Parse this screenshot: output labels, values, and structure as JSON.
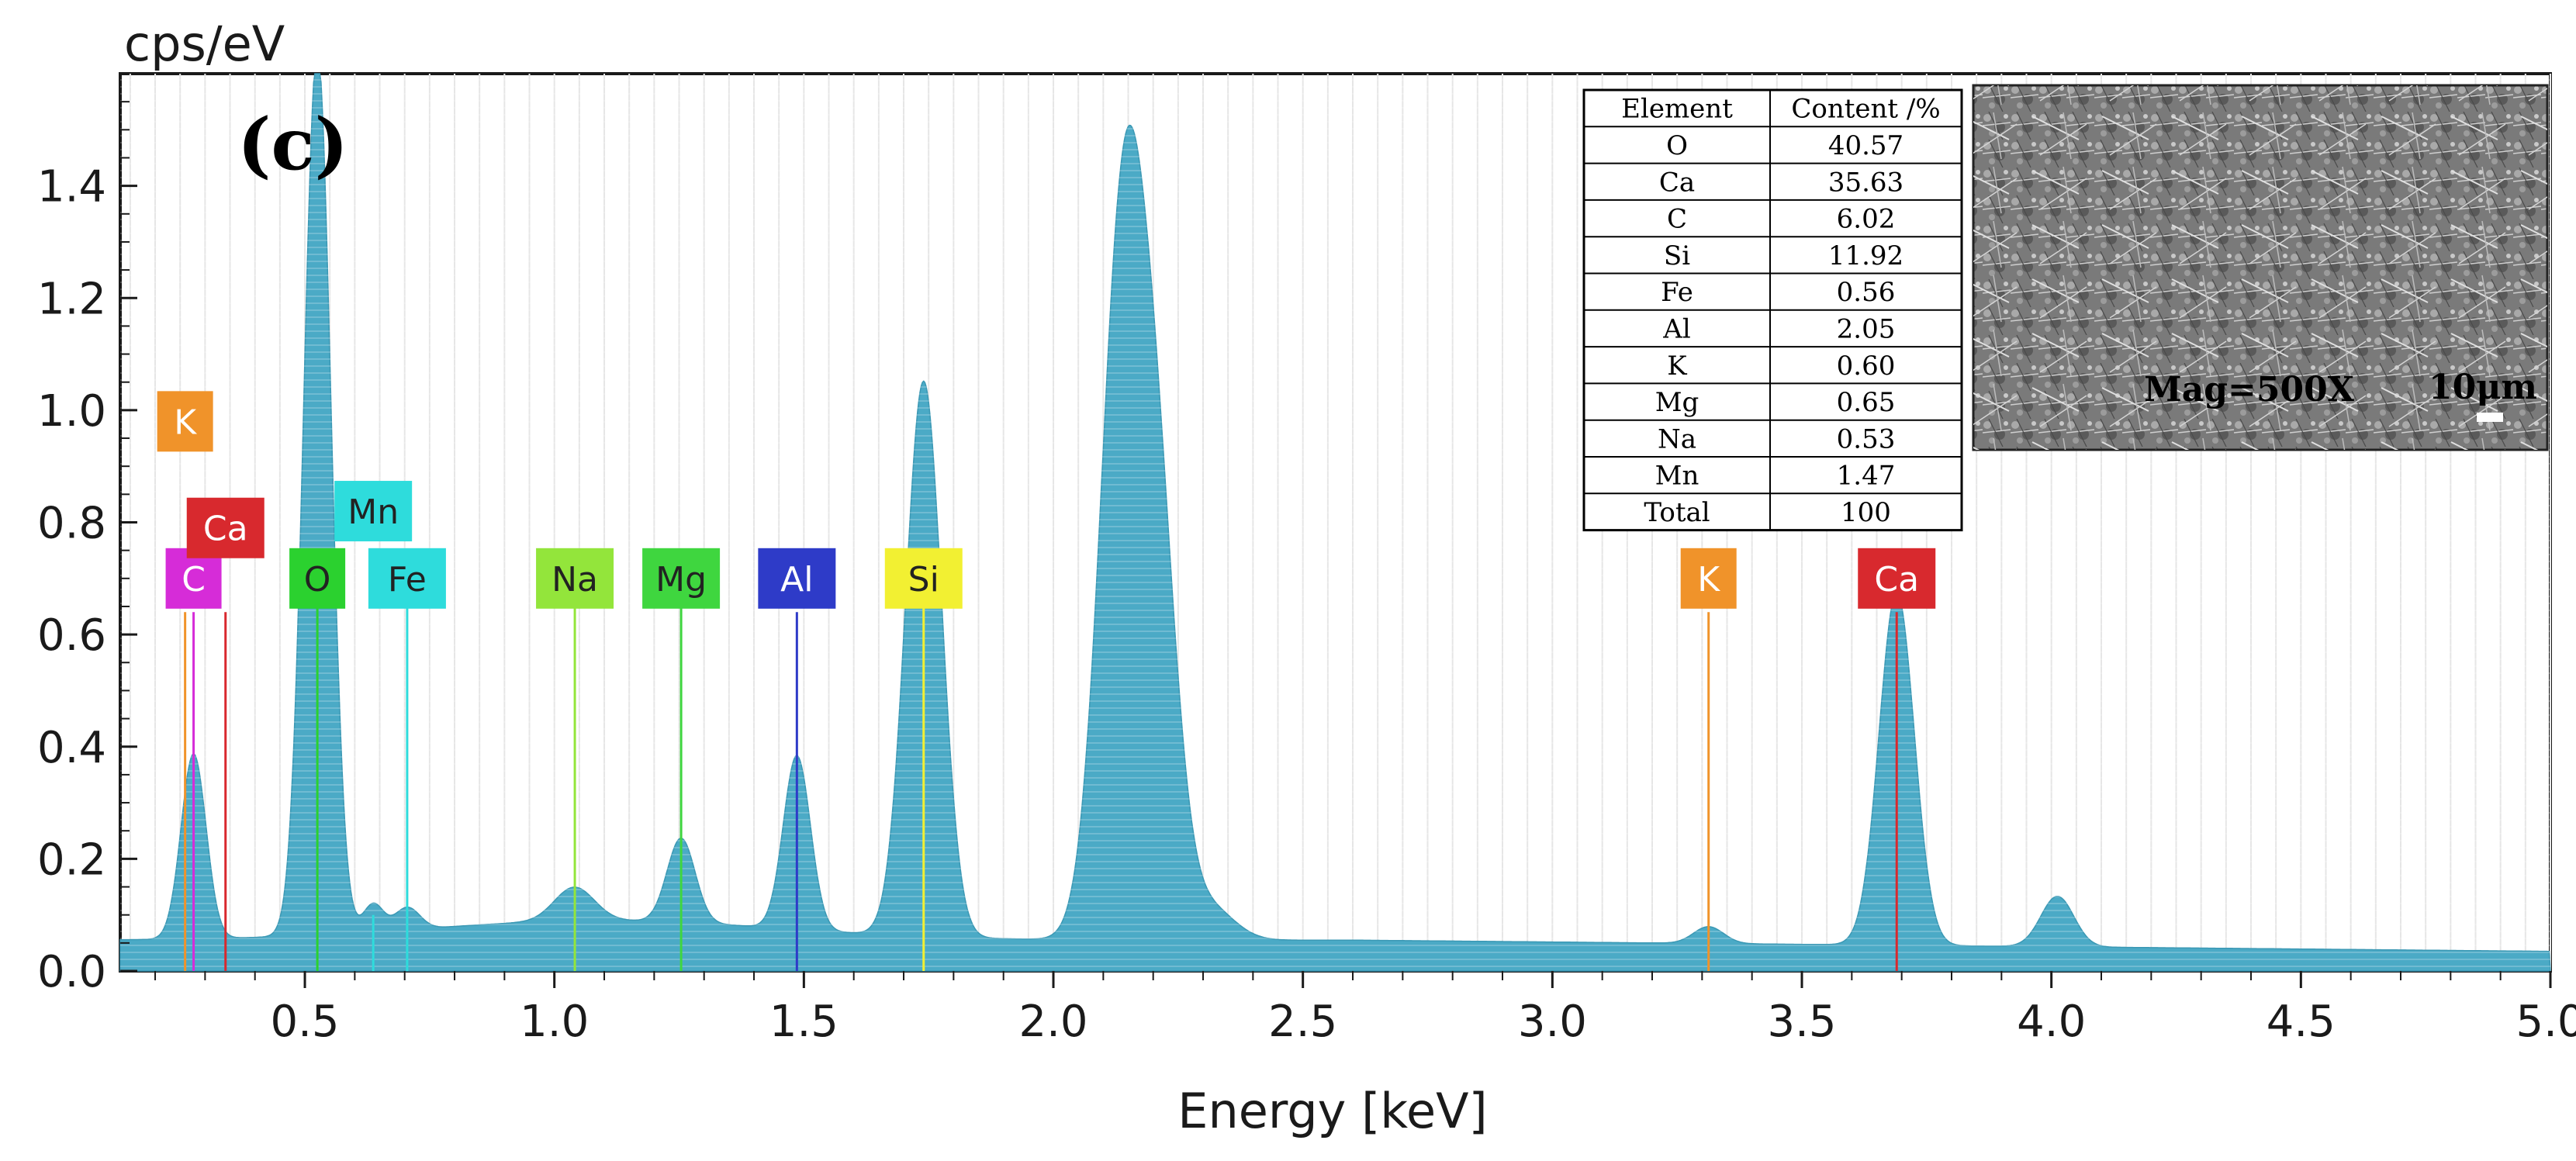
{
  "chart_data": {
    "type": "area",
    "title": "",
    "panel_label": "(c)",
    "xlabel": "Energy [keV]",
    "ylabel": "cps/eV",
    "xlim": [
      0.13,
      5.0
    ],
    "ylim": [
      0.0,
      1.6
    ],
    "x_ticks": [
      0.5,
      1.0,
      1.5,
      2.0,
      2.5,
      3.0,
      3.5,
      4.0,
      4.5,
      5.0
    ],
    "x_tick_labels": [
      "0.5",
      "1.0",
      "1.5",
      "2.0",
      "2.5",
      "3.0",
      "3.5",
      "4.0",
      "4.5",
      "5.0"
    ],
    "y_ticks": [
      0.0,
      0.2,
      0.4,
      0.6,
      0.8,
      1.0,
      1.2,
      1.4
    ],
    "y_tick_labels": [
      "0.0",
      "0.2",
      "0.4",
      "0.6",
      "0.8",
      "1.0",
      "1.2",
      "1.4"
    ],
    "fill_color": "#4BAAC6",
    "background_level": 0.055,
    "peaks": [
      {
        "center": 0.277,
        "height": 0.33,
        "width": 0.025
      },
      {
        "center": 0.525,
        "height": 1.58,
        "width": 0.027
      },
      {
        "center": 0.637,
        "height": 0.05,
        "width": 0.02
      },
      {
        "center": 0.705,
        "height": 0.04,
        "width": 0.025
      },
      {
        "center": 1.04,
        "height": 0.06,
        "width": 0.04
      },
      {
        "center": 1.254,
        "height": 0.15,
        "width": 0.028
      },
      {
        "center": 1.486,
        "height": 0.31,
        "width": 0.027
      },
      {
        "center": 1.74,
        "height": 0.99,
        "width": 0.036
      },
      {
        "center": 2.14,
        "height": 1.28,
        "width": 0.045
      },
      {
        "center": 2.21,
        "height": 0.62,
        "width": 0.04
      },
      {
        "center": 2.31,
        "height": 0.06,
        "width": 0.05
      },
      {
        "center": 3.313,
        "height": 0.03,
        "width": 0.03
      },
      {
        "center": 3.69,
        "height": 0.63,
        "width": 0.035
      },
      {
        "center": 4.012,
        "height": 0.09,
        "width": 0.033
      }
    ],
    "element_markers": [
      {
        "symbol": "C",
        "energy": 0.277,
        "color": "#D62CD8",
        "line_height": 0.64,
        "label_y": 0.7
      },
      {
        "symbol": "Ca",
        "energy": 0.341,
        "color": "#D8292E",
        "line_height": 0.64,
        "label_y": 0.79
      },
      {
        "symbol": "K",
        "energy": 0.26,
        "color": "#F0932A",
        "line_height": 0.64,
        "label_y": 0.98
      },
      {
        "symbol": "O",
        "energy": 0.525,
        "color": "#2BD12F",
        "line_height": 0.7,
        "label_y": 0.7
      },
      {
        "symbol": "Mn",
        "energy": 0.637,
        "color": "#2EDCDC",
        "line_height": 0.1,
        "label_y": 0.82
      },
      {
        "symbol": "Fe",
        "energy": 0.705,
        "color": "#2EDCDC",
        "line_height": 0.7,
        "label_y": 0.7
      },
      {
        "symbol": "Na",
        "energy": 1.041,
        "color": "#93E53B",
        "line_height": 0.7,
        "label_y": 0.7
      },
      {
        "symbol": "Mg",
        "energy": 1.254,
        "color": "#3FD63F",
        "line_height": 0.7,
        "label_y": 0.7
      },
      {
        "symbol": "Al",
        "energy": 1.486,
        "color": "#2E3BC8",
        "line_height": 0.64,
        "label_y": 0.7
      },
      {
        "symbol": "Si",
        "energy": 1.74,
        "color": "#F2F032",
        "line_height": 0.7,
        "label_y": 0.7
      },
      {
        "symbol": "K",
        "energy": 3.313,
        "color": "#F0932A",
        "line_height": 0.64,
        "label_y": 0.7
      },
      {
        "symbol": "Ca",
        "energy": 3.69,
        "color": "#D8292E",
        "line_height": 0.64,
        "label_y": 0.7
      }
    ],
    "composition_table": {
      "headers": [
        "Element",
        "Content /%"
      ],
      "rows": [
        [
          "O",
          "40.57"
        ],
        [
          "Ca",
          "35.63"
        ],
        [
          "C",
          "6.02"
        ],
        [
          "Si",
          "11.92"
        ],
        [
          "Fe",
          "0.56"
        ],
        [
          "Al",
          "2.05"
        ],
        [
          "K",
          "0.60"
        ],
        [
          "Mg",
          "0.65"
        ],
        [
          "Na",
          "0.53"
        ],
        [
          "Mn",
          "1.47"
        ],
        [
          "Total",
          "100"
        ]
      ]
    },
    "micrograph": {
      "magnification_label": "Mag=500X",
      "scale_bar_label": "10μm"
    }
  }
}
